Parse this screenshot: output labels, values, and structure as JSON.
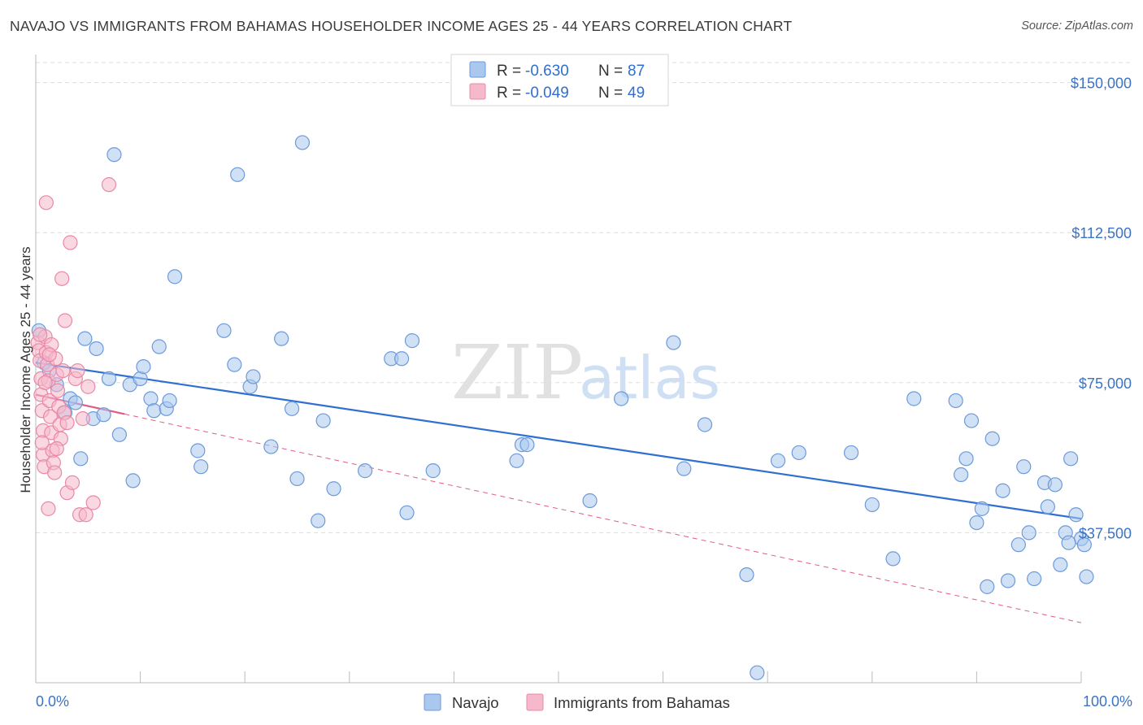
{
  "title": "NAVAJO VS IMMIGRANTS FROM BAHAMAS HOUSEHOLDER INCOME AGES 25 - 44 YEARS CORRELATION CHART",
  "source": "Source: ZipAtlas.com",
  "watermark": {
    "zip": "ZIP",
    "atlas": "atlas"
  },
  "colors": {
    "navajo_fill": "#aac8ee",
    "navajo_stroke": "#6d9ad9",
    "navajo_line": "#2f6fd1",
    "bahamas_fill": "#f6b8cb",
    "bahamas_stroke": "#e889a7",
    "bahamas_line": "#e05c8a",
    "tick_text": "#3b73c6",
    "grid": "#dddddd"
  },
  "stats": {
    "r_label": "R =",
    "n_label": "N =",
    "navajo": {
      "r": "-0.630",
      "n": "87"
    },
    "bahamas": {
      "r": "-0.049",
      "n": "49"
    }
  },
  "chart_data": {
    "type": "scatter",
    "title": "NAVAJO VS IMMIGRANTS FROM BAHAMAS HOUSEHOLDER INCOME AGES 25 - 44 YEARS CORRELATION CHART",
    "xlabel": "",
    "ylabel": "Householder Income Ages 25 - 44 years",
    "xlim": [
      0,
      100
    ],
    "ylim": [
      0,
      155000
    ],
    "y_ticks": [
      37500,
      75000,
      112500,
      150000
    ],
    "y_tick_labels": [
      "$37,500",
      "$75,000",
      "$112,500",
      "$150,000"
    ],
    "x_tick_labels": [
      "0.0%",
      "100.0%"
    ],
    "legend": [
      "Navajo",
      "Immigrants from Bahamas"
    ],
    "series": [
      {
        "name": "Navajo",
        "trend": {
          "x": [
            0,
            100
          ],
          "y": [
            80000,
            41000
          ],
          "style": "solid"
        },
        "points": [
          {
            "x": 0.3,
            "y": 88000
          },
          {
            "x": 0.8,
            "y": 80000
          },
          {
            "x": 1.3,
            "y": 78000
          },
          {
            "x": 2.0,
            "y": 74500
          },
          {
            "x": 2.8,
            "y": 67500
          },
          {
            "x": 3.3,
            "y": 71000
          },
          {
            "x": 3.8,
            "y": 70000
          },
          {
            "x": 4.3,
            "y": 56000
          },
          {
            "x": 4.7,
            "y": 86000
          },
          {
            "x": 5.5,
            "y": 66000
          },
          {
            "x": 5.8,
            "y": 83500
          },
          {
            "x": 6.5,
            "y": 67000
          },
          {
            "x": 7.0,
            "y": 76000
          },
          {
            "x": 7.5,
            "y": 132000
          },
          {
            "x": 8.0,
            "y": 62000
          },
          {
            "x": 9.0,
            "y": 74500
          },
          {
            "x": 9.3,
            "y": 50500
          },
          {
            "x": 10.0,
            "y": 76000
          },
          {
            "x": 10.3,
            "y": 79000
          },
          {
            "x": 11.0,
            "y": 71000
          },
          {
            "x": 11.3,
            "y": 68000
          },
          {
            "x": 11.8,
            "y": 84000
          },
          {
            "x": 12.5,
            "y": 68500
          },
          {
            "x": 12.8,
            "y": 70500
          },
          {
            "x": 13.3,
            "y": 101500
          },
          {
            "x": 15.5,
            "y": 58000
          },
          {
            "x": 15.8,
            "y": 54000
          },
          {
            "x": 18.0,
            "y": 88000
          },
          {
            "x": 19.0,
            "y": 79500
          },
          {
            "x": 19.3,
            "y": 127000
          },
          {
            "x": 20.5,
            "y": 74000
          },
          {
            "x": 20.8,
            "y": 76500
          },
          {
            "x": 22.5,
            "y": 59000
          },
          {
            "x": 23.5,
            "y": 86000
          },
          {
            "x": 24.5,
            "y": 68500
          },
          {
            "x": 25.0,
            "y": 51000
          },
          {
            "x": 25.5,
            "y": 135000
          },
          {
            "x": 27.0,
            "y": 40500
          },
          {
            "x": 27.5,
            "y": 65500
          },
          {
            "x": 28.5,
            "y": 48500
          },
          {
            "x": 31.5,
            "y": 53000
          },
          {
            "x": 34.0,
            "y": 81000
          },
          {
            "x": 35.0,
            "y": 81000
          },
          {
            "x": 35.5,
            "y": 42500
          },
          {
            "x": 36.0,
            "y": 85500
          },
          {
            "x": 38.0,
            "y": 53000
          },
          {
            "x": 46.0,
            "y": 55500
          },
          {
            "x": 46.5,
            "y": 59500
          },
          {
            "x": 47.0,
            "y": 59500
          },
          {
            "x": 53.0,
            "y": 45500
          },
          {
            "x": 56.0,
            "y": 71000
          },
          {
            "x": 61.0,
            "y": 85000
          },
          {
            "x": 62.0,
            "y": 53500
          },
          {
            "x": 64.0,
            "y": 64500
          },
          {
            "x": 68.0,
            "y": 27000
          },
          {
            "x": 69.0,
            "y": 2500
          },
          {
            "x": 71.0,
            "y": 55500
          },
          {
            "x": 73.0,
            "y": 57500
          },
          {
            "x": 78.0,
            "y": 57500
          },
          {
            "x": 80.0,
            "y": 44500
          },
          {
            "x": 82.0,
            "y": 31000
          },
          {
            "x": 84.0,
            "y": 71000
          },
          {
            "x": 88.0,
            "y": 70500
          },
          {
            "x": 88.5,
            "y": 52000
          },
          {
            "x": 89.0,
            "y": 56000
          },
          {
            "x": 89.5,
            "y": 65500
          },
          {
            "x": 90.0,
            "y": 40000
          },
          {
            "x": 90.5,
            "y": 43500
          },
          {
            "x": 91.0,
            "y": 24000
          },
          {
            "x": 91.5,
            "y": 61000
          },
          {
            "x": 92.5,
            "y": 48000
          },
          {
            "x": 93.0,
            "y": 25500
          },
          {
            "x": 94.0,
            "y": 34500
          },
          {
            "x": 94.5,
            "y": 54000
          },
          {
            "x": 95.0,
            "y": 37500
          },
          {
            "x": 95.5,
            "y": 26000
          },
          {
            "x": 96.5,
            "y": 50000
          },
          {
            "x": 96.8,
            "y": 44000
          },
          {
            "x": 97.5,
            "y": 49500
          },
          {
            "x": 98.0,
            "y": 29500
          },
          {
            "x": 98.5,
            "y": 37500
          },
          {
            "x": 99.0,
            "y": 56000
          },
          {
            "x": 99.5,
            "y": 42000
          },
          {
            "x": 100.0,
            "y": 36000
          },
          {
            "x": 100.3,
            "y": 34500
          },
          {
            "x": 100.5,
            "y": 26500
          },
          {
            "x": 98.8,
            "y": 35000
          }
        ]
      },
      {
        "name": "Immigrants from Bahamas",
        "trend": {
          "x": [
            0,
            100
          ],
          "y": [
            72000,
            15000
          ],
          "solid_until_x": 8.5,
          "style": "dashed"
        },
        "points": [
          {
            "x": 0.2,
            "y": 85000
          },
          {
            "x": 0.3,
            "y": 83000
          },
          {
            "x": 0.4,
            "y": 80500
          },
          {
            "x": 0.5,
            "y": 76000
          },
          {
            "x": 0.5,
            "y": 72000
          },
          {
            "x": 0.6,
            "y": 68000
          },
          {
            "x": 0.7,
            "y": 63000
          },
          {
            "x": 0.7,
            "y": 57000
          },
          {
            "x": 0.8,
            "y": 54000
          },
          {
            "x": 0.9,
            "y": 86500
          },
          {
            "x": 1.0,
            "y": 82500
          },
          {
            "x": 1.1,
            "y": 79500
          },
          {
            "x": 1.2,
            "y": 75500
          },
          {
            "x": 1.3,
            "y": 70500
          },
          {
            "x": 1.4,
            "y": 66500
          },
          {
            "x": 1.5,
            "y": 62500
          },
          {
            "x": 1.6,
            "y": 58000
          },
          {
            "x": 1.7,
            "y": 55000
          },
          {
            "x": 1.8,
            "y": 52500
          },
          {
            "x": 1.0,
            "y": 120000
          },
          {
            "x": 1.5,
            "y": 84500
          },
          {
            "x": 1.9,
            "y": 81000
          },
          {
            "x": 2.0,
            "y": 77000
          },
          {
            "x": 2.1,
            "y": 73000
          },
          {
            "x": 2.2,
            "y": 69000
          },
          {
            "x": 2.3,
            "y": 64500
          },
          {
            "x": 2.4,
            "y": 61000
          },
          {
            "x": 2.5,
            "y": 101000
          },
          {
            "x": 2.6,
            "y": 78000
          },
          {
            "x": 2.7,
            "y": 67500
          },
          {
            "x": 2.8,
            "y": 90500
          },
          {
            "x": 3.0,
            "y": 47500
          },
          {
            "x": 3.3,
            "y": 110000
          },
          {
            "x": 3.5,
            "y": 50000
          },
          {
            "x": 3.8,
            "y": 76000
          },
          {
            "x": 4.0,
            "y": 78000
          },
          {
            "x": 4.2,
            "y": 42000
          },
          {
            "x": 4.5,
            "y": 66000
          },
          {
            "x": 4.8,
            "y": 42000
          },
          {
            "x": 5.0,
            "y": 74000
          },
          {
            "x": 5.5,
            "y": 45000
          },
          {
            "x": 7.0,
            "y": 124500
          },
          {
            "x": 1.2,
            "y": 43500
          },
          {
            "x": 0.4,
            "y": 87000
          },
          {
            "x": 0.6,
            "y": 60000
          },
          {
            "x": 0.9,
            "y": 75000
          },
          {
            "x": 1.3,
            "y": 82000
          },
          {
            "x": 2.0,
            "y": 58500
          },
          {
            "x": 3.0,
            "y": 65000
          }
        ]
      }
    ]
  }
}
